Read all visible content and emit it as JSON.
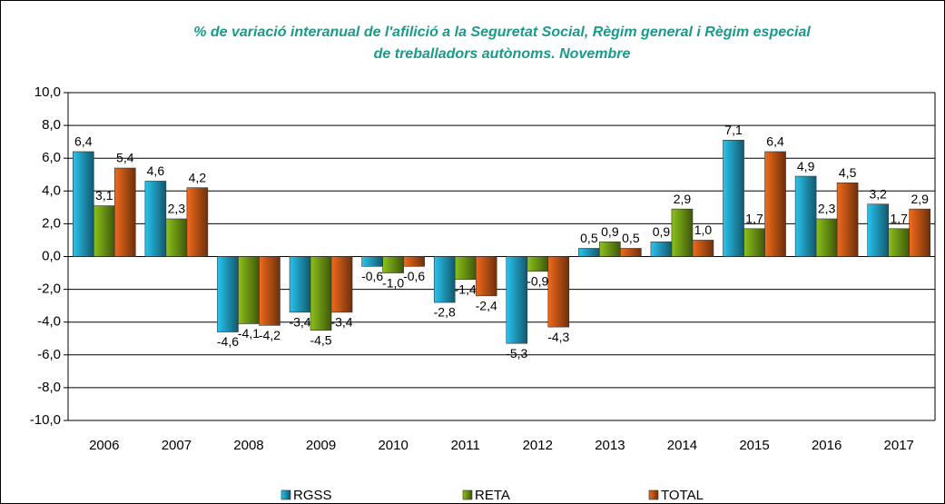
{
  "chart_data": {
    "type": "bar",
    "title": [
      "% de variació interanual de l'afilició a la Seguretat Social, Règim general i Règim especial",
      "de treballadors autònoms. Novembre"
    ],
    "categories": [
      "2006",
      "2007",
      "2008",
      "2009",
      "2010",
      "2011",
      "2012",
      "2013",
      "2014",
      "2015",
      "2016",
      "2017"
    ],
    "series": [
      {
        "name": "RGSS",
        "color": "#29c4f0",
        "values": [
          6.4,
          4.6,
          -4.6,
          -3.4,
          -0.6,
          -2.8,
          -5.3,
          0.5,
          0.9,
          7.1,
          4.9,
          3.2
        ],
        "value_labels": [
          "6,4",
          "4,6",
          "-4,6",
          "-3,4",
          "-0,6",
          "-2,8",
          "-5,3",
          "0,5",
          "0,9",
          "7,1",
          "4,9",
          "3,2"
        ]
      },
      {
        "name": "RETA",
        "color": "#8cc21a",
        "values": [
          3.1,
          2.3,
          -4.1,
          -4.5,
          -1.0,
          -1.4,
          -0.9,
          0.9,
          2.9,
          1.7,
          2.3,
          1.7
        ],
        "value_labels": [
          "3,1",
          "2,3",
          "-4,1",
          "-4,5",
          "-1,0",
          "-1,4",
          "-0,9",
          "0,9",
          "2,9",
          "1,7",
          "2,3",
          "1,7"
        ]
      },
      {
        "name": "TOTAL",
        "color": "#f26a1b",
        "values": [
          5.4,
          4.2,
          -4.2,
          -3.4,
          -0.6,
          -2.4,
          -4.3,
          0.5,
          1.0,
          6.4,
          4.5,
          2.9
        ],
        "value_labels": [
          "5,4",
          "4,2",
          "-4,2",
          "-3,4",
          "-0,6",
          "-2,4",
          "-4,3",
          "0,5",
          "1,0",
          "6,4",
          "4,5",
          "2,9"
        ]
      }
    ],
    "ylim": [
      -10,
      10
    ],
    "yticks": [
      {
        "value": -10,
        "label": "-10,0"
      },
      {
        "value": -8,
        "label": "-8,0"
      },
      {
        "value": -6,
        "label": "-6,0"
      },
      {
        "value": -4,
        "label": "-4,0"
      },
      {
        "value": -2,
        "label": "-2,0"
      },
      {
        "value": 0,
        "label": "0,0"
      },
      {
        "value": 2,
        "label": "2,0"
      },
      {
        "value": 4,
        "label": "4,0"
      },
      {
        "value": 6,
        "label": "6,0"
      },
      {
        "value": 8,
        "label": "8,0"
      },
      {
        "value": 10,
        "label": "10,0"
      }
    ],
    "grid": true,
    "legend": "bottom"
  }
}
